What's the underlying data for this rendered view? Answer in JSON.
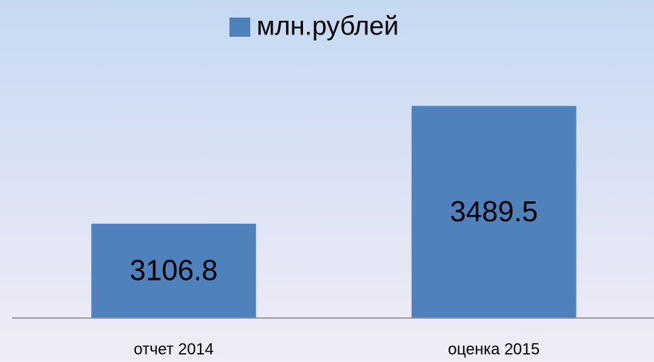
{
  "chart_data": {
    "type": "bar",
    "categories": [
      "отчет 2014",
      "оценка 2015"
    ],
    "series": [
      {
        "name": "млн.рублей",
        "color": "#4f81bd",
        "values": [
          3106.8,
          3489.5
        ]
      }
    ],
    "ylim": [
      2800,
      3600
    ],
    "legend": "top"
  }
}
